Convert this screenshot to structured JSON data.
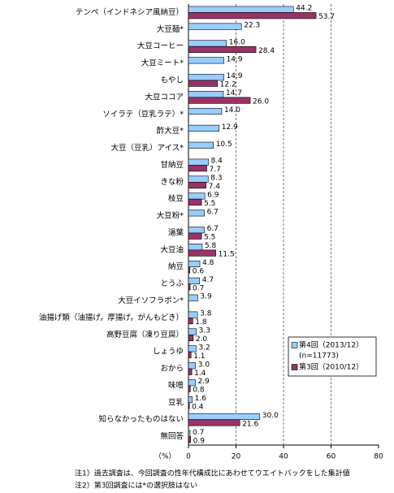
{
  "chart_data": {
    "type": "bar",
    "orientation": "horizontal",
    "categories": [
      "テンペ（インドネシア風納豆）",
      "大豆麺*",
      "大豆コーヒー",
      "大豆ミート*",
      "もやし",
      "大豆ココア",
      "ソイラテ（豆乳ラテ）*",
      "酢大豆*",
      "大豆（豆乳）アイス*",
      "甘納豆",
      "きな粉",
      "枝豆",
      "大豆粉*",
      "湯葉",
      "大豆油",
      "納豆",
      "とうふ",
      "大豆イソフラボン*",
      "油揚げ類（油揚げ，厚揚げ，がんもどき）",
      "高野豆腐（凍り豆腐）",
      "しょうゆ",
      "おから",
      "味噌",
      "豆乳",
      "知らなかったものはない",
      "無回答"
    ],
    "series": [
      {
        "name": "第4回（2013/12）",
        "color": "#99ccff",
        "values": [
          44.2,
          22.3,
          16.0,
          14.9,
          14.9,
          14.7,
          14.0,
          12.9,
          10.5,
          8.4,
          8.3,
          6.9,
          6.7,
          6.7,
          5.8,
          4.8,
          4.7,
          3.9,
          3.8,
          3.3,
          3.2,
          3.0,
          2.9,
          1.6,
          30.0,
          0.7
        ],
        "value_labels": [
          "44.2",
          "22.3",
          "16.0",
          "14.9",
          "14.9",
          "14.7",
          "14.0",
          "12.9",
          "10.5",
          "8.4",
          "8.3",
          "6.9",
          "6.7",
          "6.7",
          "5.8",
          "4.8",
          "4.7",
          "3.9",
          "3.8",
          "3.3",
          "3.2",
          "3.0",
          "2.9",
          "1.6",
          "30.0",
          "0.7"
        ]
      },
      {
        "name": "第3回（2010/12）",
        "color": "#993366",
        "values": [
          53.7,
          null,
          28.4,
          null,
          12.2,
          26.0,
          null,
          null,
          null,
          7.7,
          7.4,
          5.5,
          null,
          5.5,
          11.5,
          0.6,
          0.7,
          null,
          1.8,
          2.0,
          1.1,
          1.4,
          0.8,
          0.4,
          21.6,
          0.9
        ],
        "value_labels": [
          "53.7",
          null,
          "28.4",
          null,
          "12.2",
          "26.0",
          null,
          null,
          null,
          "7.7",
          "7.4",
          "5.5",
          null,
          "5.5",
          "11.5",
          "0.6",
          "0.7",
          null,
          "1.8",
          "2.0",
          "1.1",
          "1.4",
          "0.8",
          "0.4",
          "21.6",
          "0.9"
        ]
      }
    ],
    "legend_note": "(n=11773)",
    "legend_position": "lower right",
    "x_label": "（%）",
    "xlim": [
      0,
      80
    ],
    "xticks": [
      0,
      20,
      40,
      60,
      80
    ],
    "grid": true,
    "notes": [
      "注1）過去調査は、今回調査の性年代構成比にあわせてウエイトバックをした集計値",
      "注2）第3回調査には*の選択肢はない"
    ]
  }
}
